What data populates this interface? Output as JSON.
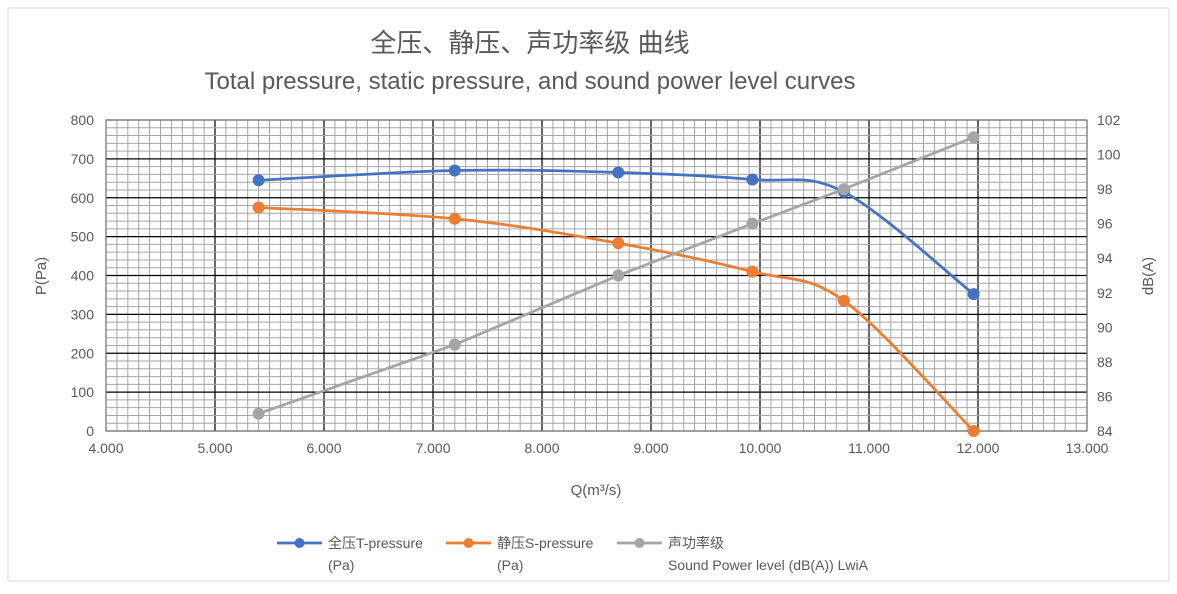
{
  "chart_data": {
    "type": "line",
    "title": "全压、静压、声功率级 曲线",
    "subtitle": "Total pressure, static pressure, and  sound power level curves",
    "xlabel": "Q(m³/s)",
    "ylabel": "P(Pa)",
    "y2label": "dB(A)",
    "xlim": [
      4.0,
      13.0
    ],
    "ylim": [
      0,
      800
    ],
    "y2lim": [
      84,
      102
    ],
    "x_ticks": [
      "4.000",
      "5.000",
      "6.000",
      "7.000",
      "8.000",
      "9.000",
      "10.000",
      "11.000",
      "12.000",
      "13.000"
    ],
    "y_ticks": [
      "0",
      "100",
      "200",
      "300",
      "400",
      "500",
      "600",
      "700",
      "800"
    ],
    "y2_ticks": [
      "84",
      "86",
      "88",
      "90",
      "92",
      "94",
      "96",
      "98",
      "100",
      "102"
    ],
    "grid": true,
    "legend_position": "bottom",
    "series": [
      {
        "name": "全压T-pressure (Pa)",
        "legend_line1": "全压T-pressure",
        "legend_line2": "(Pa)",
        "axis": "left",
        "color": "#4472C4",
        "x": [
          5.4,
          7.2,
          8.7,
          9.93,
          10.77,
          11.96
        ],
        "y": [
          645,
          670,
          665,
          647,
          615,
          352
        ]
      },
      {
        "name": "静压S-pressure (Pa)",
        "legend_line1": "静压S-pressure",
        "legend_line2": "(Pa)",
        "axis": "left",
        "color": "#ED7D31",
        "x": [
          5.4,
          7.2,
          8.7,
          9.93,
          10.77,
          11.96
        ],
        "y": [
          575,
          546,
          483,
          410,
          335,
          0
        ]
      },
      {
        "name": "声功率级 Sound Power level (dB(A)) LwiA",
        "legend_line1": "声功率级",
        "legend_line2": "Sound Power level (dB(A)) LwiA",
        "axis": "right",
        "color": "#A5A5A5",
        "x": [
          5.4,
          7.2,
          8.7,
          9.93,
          10.77,
          11.96
        ],
        "y": [
          85,
          89,
          93,
          96,
          98,
          101
        ]
      }
    ]
  }
}
